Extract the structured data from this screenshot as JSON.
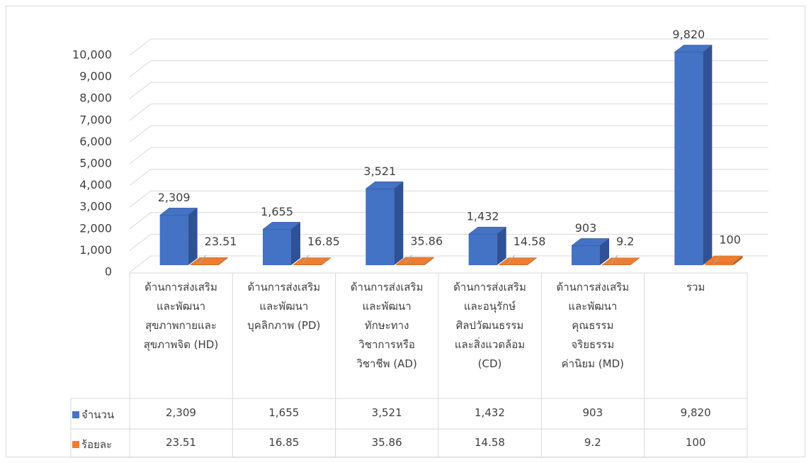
{
  "chart_data": {
    "type": "bar3d",
    "categories": [
      "ด้านการส่งเสริม\nและพัฒนา\nสุขภาพกายและ\nสุขภาพจิต (HD)",
      "ด้านการส่งเสริม\nและพัฒนา\nบุคลิกภาพ (PD)",
      "ด้านการส่งเสริม\nและพัฒนา\nทักษะทาง\nวิชาการหรือ\nวิชาชีพ (AD)",
      "ด้านการส่งเสริม\nและอนุรักษ์\nศิลปวัฒนธรรม\nและสิ่งแวดล้อม\n(CD)",
      "ด้านการส่งเสริม\nและพัฒนา\nคุณธรรม\nจริยธรรม\nค่านิยม (MD)",
      "รวม"
    ],
    "series": [
      {
        "name": "จำนวน",
        "color": "#4472c4",
        "side": "#2f5196",
        "values": [
          2309,
          1655,
          3521,
          1432,
          903,
          9820
        ],
        "value_labels": [
          "2,309",
          "1,655",
          "3,521",
          "1,432",
          "903",
          "9,820"
        ]
      },
      {
        "name": "ร้อยละ",
        "color": "#ed7d31",
        "side": "#b85d1f",
        "values": [
          23.51,
          16.85,
          35.86,
          14.58,
          9.2,
          100
        ]
      }
    ],
    "ylim": [
      0,
      10000
    ],
    "yticks": [
      0,
      {
        "value": 1000,
        "label": "1,000"
      },
      {
        "value": 2000,
        "label": "2,000"
      },
      {
        "value": 3000,
        "label": "3,000"
      },
      {
        "value": 4000,
        "label": "4,000"
      },
      {
        "value": 5000,
        "label": "5,000"
      },
      {
        "value": 6000,
        "label": "6,000"
      },
      {
        "value": 7000,
        "label": "7,000"
      },
      {
        "value": 8000,
        "label": "8,000"
      },
      {
        "value": 9000,
        "label": "9,000"
      },
      {
        "value": 10000,
        "label": "10,000"
      }
    ],
    "grid": true,
    "data_table": true
  }
}
